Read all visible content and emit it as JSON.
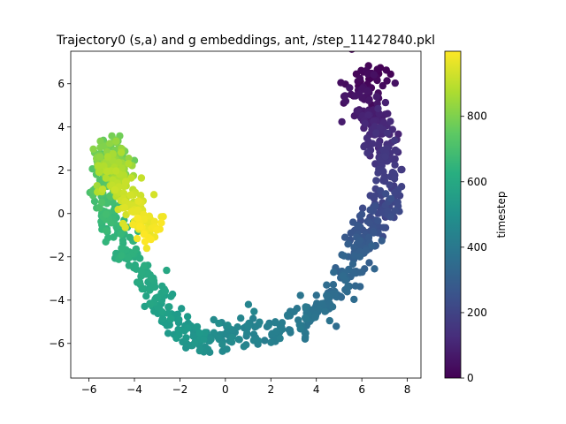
{
  "chart_data": {
    "type": "scatter",
    "title": "Trajectory0 (s,a) and g embeddings, ant, /step_11427840.pkl",
    "xlabel": "",
    "ylabel": "",
    "xlim": [
      -6.8,
      8.6
    ],
    "ylim": [
      -7.6,
      7.5
    ],
    "x_ticks": [
      -6,
      -4,
      -2,
      0,
      2,
      4,
      6,
      8
    ],
    "x_tick_labels": [
      "−6",
      "−4",
      "−2",
      "0",
      "2",
      "4",
      "6",
      "8"
    ],
    "y_ticks": [
      -6,
      -4,
      -2,
      0,
      2,
      4,
      6
    ],
    "y_tick_labels": [
      "−6",
      "−4",
      "−2",
      "0",
      "2",
      "4",
      "6"
    ],
    "grid": false,
    "legend": "none",
    "colorbar": {
      "label": "timestep",
      "colormap": "viridis",
      "range": [
        0,
        999
      ],
      "ticks": [
        0,
        200,
        400,
        600,
        800
      ],
      "tick_labels": [
        "0",
        "200",
        "400",
        "600",
        "800"
      ]
    },
    "path_points": [
      {
        "t": 0,
        "x": 6.6,
        "y": 6.6
      },
      {
        "t": 30,
        "x": 6.3,
        "y": 5.9
      },
      {
        "t": 60,
        "x": 6.0,
        "y": 5.0
      },
      {
        "t": 90,
        "x": 6.5,
        "y": 4.5
      },
      {
        "t": 120,
        "x": 6.8,
        "y": 3.6
      },
      {
        "t": 160,
        "x": 7.0,
        "y": 2.6
      },
      {
        "t": 190,
        "x": 7.2,
        "y": 1.2
      },
      {
        "t": 220,
        "x": 7.1,
        "y": 0.0
      },
      {
        "t": 260,
        "x": 6.2,
        "y": -0.6
      },
      {
        "t": 300,
        "x": 5.8,
        "y": -2.0
      },
      {
        "t": 330,
        "x": 5.4,
        "y": -3.0
      },
      {
        "t": 360,
        "x": 4.5,
        "y": -4.2
      },
      {
        "t": 390,
        "x": 3.6,
        "y": -4.9
      },
      {
        "t": 420,
        "x": 2.3,
        "y": -5.4
      },
      {
        "t": 450,
        "x": 1.0,
        "y": -5.5
      },
      {
        "t": 480,
        "x": -0.3,
        "y": -5.7
      },
      {
        "t": 510,
        "x": -1.2,
        "y": -5.9
      },
      {
        "t": 540,
        "x": -2.0,
        "y": -5.2
      },
      {
        "t": 570,
        "x": -2.8,
        "y": -4.2
      },
      {
        "t": 600,
        "x": -3.4,
        "y": -3.0
      },
      {
        "t": 630,
        "x": -4.2,
        "y": -1.8
      },
      {
        "t": 660,
        "x": -4.8,
        "y": -0.6
      },
      {
        "t": 700,
        "x": -5.2,
        "y": 0.6
      },
      {
        "t": 740,
        "x": -5.1,
        "y": 1.8
      },
      {
        "t": 780,
        "x": -4.9,
        "y": 2.8
      },
      {
        "t": 830,
        "x": -5.0,
        "y": 2.3
      },
      {
        "t": 880,
        "x": -5.1,
        "y": 1.9
      },
      {
        "t": 930,
        "x": -4.2,
        "y": 0.4
      },
      {
        "t": 999,
        "x": -3.2,
        "y": -0.9
      }
    ],
    "n_points": 1000
  }
}
